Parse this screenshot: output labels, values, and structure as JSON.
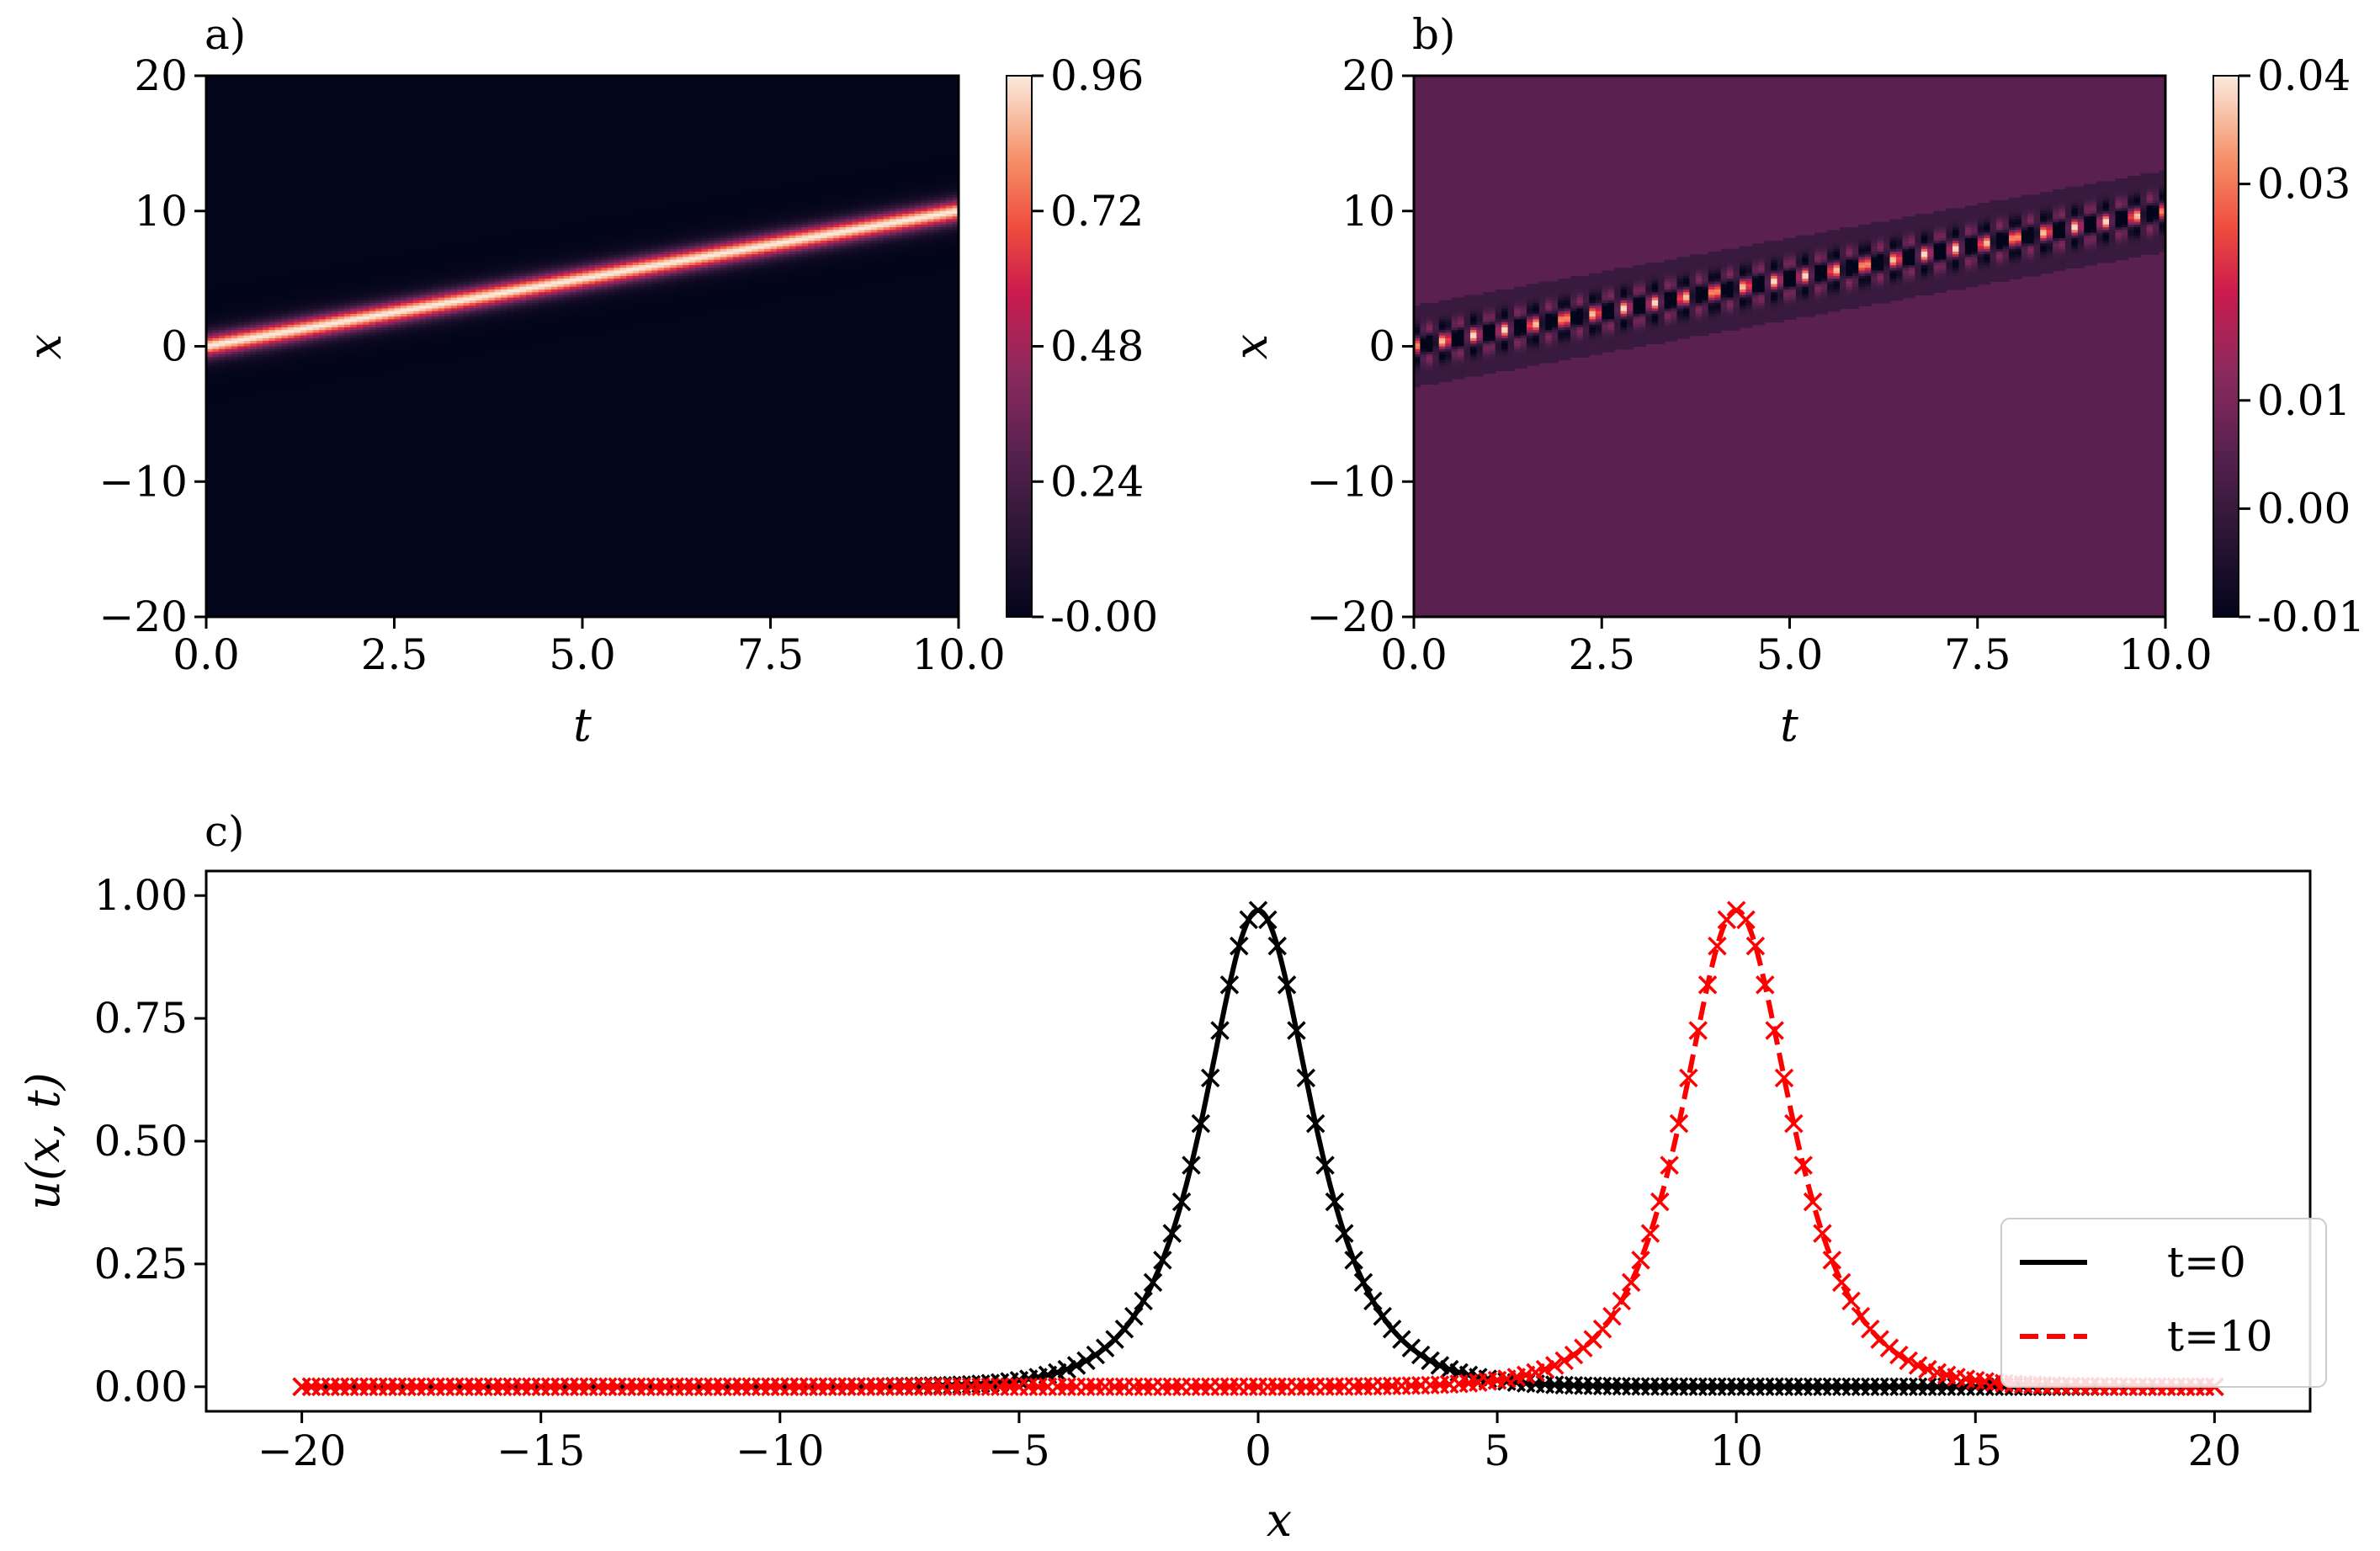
{
  "chart_data": [
    {
      "id": "a",
      "type": "heatmap",
      "panel_label": "a)",
      "description_free": true,
      "xlabel": "t",
      "ylabel": "x",
      "xlim": [
        0,
        10
      ],
      "ylim": [
        -20,
        20
      ],
      "xticks": [
        "0.0",
        "2.5",
        "5.0",
        "7.5",
        "10.0"
      ],
      "yticks": [
        "−20",
        "−10",
        "0",
        "10",
        "20"
      ],
      "xtick_values": [
        0,
        2.5,
        5,
        7.5,
        10
      ],
      "ytick_values": [
        -20,
        -10,
        0,
        10,
        20
      ],
      "colorbar": {
        "range": [
          0.0,
          0.96
        ],
        "ticks": [
          "-0.00",
          "0.24",
          "0.48",
          "0.72",
          "0.96"
        ],
        "tick_values": [
          0.0,
          0.24,
          0.48,
          0.72,
          0.96
        ]
      },
      "field": {
        "kind": "soliton",
        "amplitude": 0.96,
        "speed": 1.0,
        "start": 0.0,
        "background": 0.0
      }
    },
    {
      "id": "b",
      "type": "heatmap",
      "panel_label": "b)",
      "xlabel": "t",
      "ylabel": "x",
      "xlim": [
        0,
        10
      ],
      "ylim": [
        -20,
        20
      ],
      "xticks": [
        "0.0",
        "2.5",
        "5.0",
        "7.5",
        "10.0"
      ],
      "yticks": [
        "−20",
        "−10",
        "0",
        "10",
        "20"
      ],
      "xtick_values": [
        0,
        2.5,
        5,
        7.5,
        10
      ],
      "ytick_values": [
        -20,
        -10,
        0,
        10,
        20
      ],
      "colorbar": {
        "range": [
          -0.01,
          0.04
        ],
        "ticks": [
          "-0.01",
          "0.00",
          "0.01",
          "0.03",
          "0.04"
        ],
        "tick_values": [
          -0.01,
          0.0,
          0.01,
          0.03,
          0.04
        ]
      },
      "field": {
        "kind": "error-ripple",
        "peak": 0.04,
        "speed": 1.0,
        "start": 0.0,
        "background": 0.0
      }
    },
    {
      "id": "c",
      "type": "line",
      "panel_label": "c)",
      "xlabel": "x",
      "ylabel": "u(x, t)",
      "xlim": [
        -22,
        22
      ],
      "ylim": [
        -0.05,
        1.05
      ],
      "xticks": [
        "−20",
        "−15",
        "−10",
        "−5",
        "0",
        "5",
        "10",
        "15",
        "20"
      ],
      "xtick_values": [
        -20,
        -15,
        -10,
        -5,
        0,
        5,
        10,
        15,
        20
      ],
      "yticks": [
        "0.00",
        "0.25",
        "0.50",
        "0.75",
        "1.00"
      ],
      "ytick_values": [
        0,
        0.25,
        0.5,
        0.75,
        1.0
      ],
      "series": [
        {
          "name": "t=0",
          "color": "#000000",
          "style": "solid",
          "center": 0,
          "amplitude": 0.97,
          "marker": "x",
          "marker_color": "#000000",
          "legend": "t=0"
        },
        {
          "name": "t=10",
          "color": "#ff0000",
          "style": "dashed",
          "center": 10,
          "amplitude": 0.97,
          "marker": "x",
          "marker_color": "#ff0000",
          "legend": "t=10"
        }
      ],
      "legend_position": "lower-right"
    }
  ]
}
